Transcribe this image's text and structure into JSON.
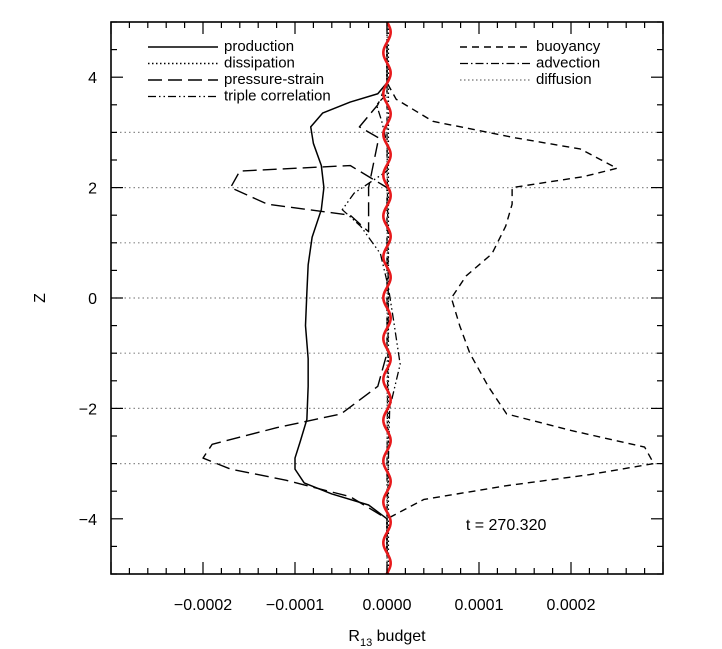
{
  "chart_data": {
    "type": "line",
    "orientation": "vertical-profile",
    "xlabel_main": "R",
    "xlabel_sub": "13",
    "xlabel_rest": " budget",
    "ylabel": "Z",
    "xlim": [
      -0.0003,
      0.0003
    ],
    "ylim": [
      -5,
      5
    ],
    "xticks": [
      -0.0002,
      -0.0001,
      0.0,
      0.0001,
      0.0002
    ],
    "xtick_labels": [
      "−0.0002",
      "−0.0001",
      "0.0000",
      "0.0001",
      "0.0002"
    ],
    "yticks": [
      -4,
      -2,
      0,
      2,
      4
    ],
    "ytick_labels": [
      "−4",
      "−2",
      "0",
      "2",
      "4"
    ],
    "grid": {
      "horizontal_dotted_at": [
        -3,
        -2,
        -1,
        0,
        1,
        2,
        3
      ]
    },
    "annotation": "t = 270.320",
    "legend_position": "top (two columns inside plot)",
    "series": [
      {
        "name": "production",
        "style": "solid",
        "color": "#000000",
        "points": [
          [
            0.0,
            -4.6
          ],
          [
            0.0,
            -4.0
          ],
          [
            -2e-05,
            -3.75
          ],
          [
            -6e-05,
            -3.55
          ],
          [
            -9e-05,
            -3.35
          ],
          [
            -0.0001,
            -3.1
          ],
          [
            -0.0001,
            -2.9
          ],
          [
            -9.43e-05,
            -2.6
          ],
          [
            -8.71e-05,
            -2.2
          ],
          [
            -8.57e-05,
            -1.6
          ],
          [
            -8.57e-05,
            -1.1
          ],
          [
            -8.86e-05,
            -0.5
          ],
          [
            -8.71e-05,
            0.1
          ],
          [
            -8.57e-05,
            0.6
          ],
          [
            -8.14e-05,
            1.1
          ],
          [
            -7.14e-05,
            1.6
          ],
          [
            -6.86e-05,
            2.0
          ],
          [
            -7.14e-05,
            2.4
          ],
          [
            -8e-05,
            2.8
          ],
          [
            -8.29e-05,
            3.1
          ],
          [
            -7e-05,
            3.35
          ],
          [
            -4e-05,
            3.55
          ],
          [
            -1e-05,
            3.7
          ],
          [
            0.0,
            3.9
          ],
          [
            0.0,
            4.6
          ]
        ]
      },
      {
        "name": "dissipation",
        "style": "dotted",
        "color": "#000000",
        "points": [
          [
            1.4e-06,
            -5.0
          ],
          [
            1.4e-06,
            5.0
          ]
        ]
      },
      {
        "name": "pressure-strain",
        "style": "longdash",
        "color": "#000000",
        "points": [
          [
            0.0,
            -4.6
          ],
          [
            0.0,
            -4.0
          ],
          [
            -4e-05,
            -3.6
          ],
          [
            -0.00011,
            -3.3
          ],
          [
            -0.00017,
            -3.1
          ],
          [
            -0.0002,
            -2.9
          ],
          [
            -0.00019,
            -2.65
          ],
          [
            -0.00012,
            -2.35
          ],
          [
            -5e-05,
            -2.1
          ],
          [
            -1e-05,
            -1.6
          ],
          [
            0.0,
            -1.0
          ],
          [
            0.0,
            2.0
          ],
          [
            -4e-05,
            2.4
          ],
          [
            -0.00016,
            2.3
          ],
          [
            -0.00017,
            2.0
          ],
          [
            -0.00013,
            1.7
          ],
          [
            -4e-05,
            1.5
          ],
          [
            -2e-05,
            1.2
          ],
          [
            -2e-05,
            2.0
          ],
          [
            -9e-06,
            2.9
          ],
          [
            -3e-05,
            3.1
          ],
          [
            -1e-05,
            3.5
          ],
          [
            0.0,
            3.9
          ],
          [
            0.0,
            4.6
          ]
        ]
      },
      {
        "name": "triple correlation",
        "style": "dashdotdot",
        "color": "#000000",
        "points": [
          [
            0.0,
            -4.0
          ],
          [
            1.4e-06,
            -3.0
          ],
          [
            2.9e-06,
            -2.0
          ],
          [
            1.43e-05,
            -1.2
          ],
          [
            7.1e-06,
            -0.4
          ],
          [
            1.4e-06,
            0.2
          ],
          [
            -7.1e-06,
            0.8
          ],
          [
            -2.86e-05,
            1.3
          ],
          [
            -4.86e-05,
            1.6
          ],
          [
            -3.57e-05,
            1.9
          ],
          [
            0.0,
            2.3
          ],
          [
            0.0,
            2.8
          ],
          [
            -5.7e-06,
            3.2
          ],
          [
            -1.14e-05,
            3.5
          ],
          [
            0.0,
            3.7
          ],
          [
            0.0,
            4.0
          ]
        ]
      },
      {
        "name": "buoyancy",
        "style": "dash",
        "color": "#000000",
        "points": [
          [
            0.0,
            -4.6
          ],
          [
            0.0,
            -4.0
          ],
          [
            4e-05,
            -3.65
          ],
          [
            0.00013,
            -3.4
          ],
          [
            0.00022,
            -3.2
          ],
          [
            0.00029,
            -3.0
          ],
          [
            0.00028,
            -2.7
          ],
          [
            0.0002,
            -2.4
          ],
          [
            0.00013,
            -2.1
          ],
          [
            0.00011,
            -1.6
          ],
          [
            9e-05,
            -1.0
          ],
          [
            7.9e-05,
            -0.5
          ],
          [
            7e-05,
            0.0
          ],
          [
            8.6e-05,
            0.4
          ],
          [
            0.000114,
            0.8
          ],
          [
            0.000129,
            1.3
          ],
          [
            0.000136,
            1.7
          ],
          [
            0.000136,
            2.0
          ],
          [
            0.000214,
            2.2
          ],
          [
            0.00025,
            2.35
          ],
          [
            0.00021,
            2.7
          ],
          [
            0.00014,
            2.9
          ],
          [
            5e-05,
            3.2
          ],
          [
            1e-05,
            3.6
          ],
          [
            0.0,
            3.9
          ],
          [
            0.0,
            4.6
          ]
        ]
      },
      {
        "name": "advection",
        "style": "dashdot",
        "color": "#000000",
        "points": [
          [
            0.0,
            -5.0
          ],
          [
            0.0,
            -3.0
          ],
          [
            1.4e-06,
            0.0
          ],
          [
            0.0,
            3.0
          ],
          [
            0.0,
            5.0
          ]
        ]
      },
      {
        "name": "diffusion",
        "style": "dotted-gray",
        "color": "#888888",
        "points": [
          [
            0.0,
            -5.0
          ],
          [
            0.0,
            5.0
          ]
        ]
      },
      {
        "name": "",
        "style": "zigzag-red",
        "color": "#e8191b",
        "note": "unlabeled red oscillating profile near zero",
        "amplitude": 4e-06,
        "points": [
          [
            0.0,
            -5.0
          ],
          [
            0.0,
            5.0
          ]
        ]
      }
    ]
  }
}
